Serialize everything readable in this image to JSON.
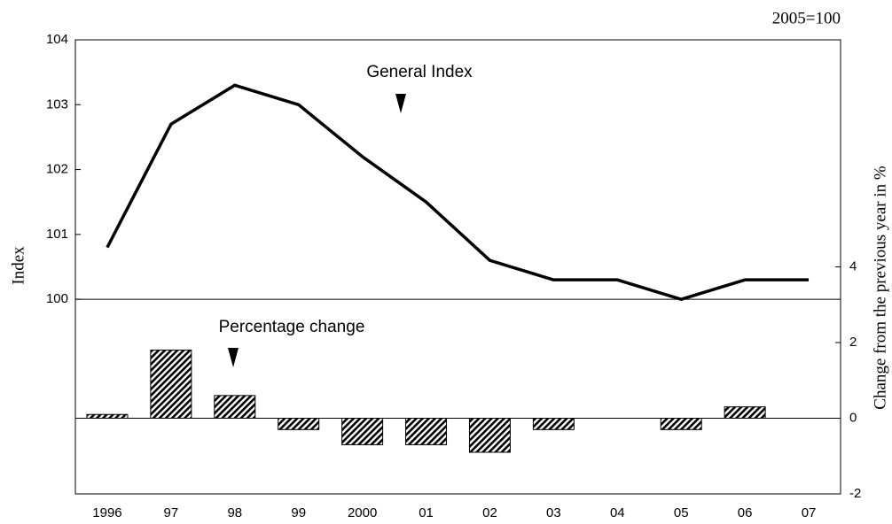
{
  "chart_data": {
    "type": "line-bar",
    "unit_note": "2005=100",
    "ylabel": "Index",
    "y2label": "Change from the previous year in %",
    "categories": [
      "1996",
      "97",
      "98",
      "99",
      "2000",
      "01",
      "02",
      "03",
      "04",
      "05",
      "06",
      "07"
    ],
    "series": [
      {
        "name": "General Index",
        "type": "line",
        "color": "#000000",
        "values": [
          100.8,
          102.7,
          103.3,
          103.0,
          102.2,
          101.5,
          100.6,
          100.3,
          100.3,
          100.0,
          100.3,
          100.3
        ]
      },
      {
        "name": "Percentage change",
        "type": "bar",
        "axis": "y2",
        "color": "#000000",
        "values": [
          0.1,
          1.8,
          0.6,
          -0.3,
          -0.7,
          -0.7,
          -0.9,
          -0.3,
          0,
          -0.3,
          0.3,
          null
        ]
      }
    ],
    "ylim": [
      97,
      104
    ],
    "yticks": [
      100,
      101,
      102,
      103,
      104
    ],
    "y2lim": [
      -2,
      10
    ],
    "y2ticks": [
      -2,
      0,
      2,
      4
    ],
    "reference_line": 100,
    "grid": false
  }
}
